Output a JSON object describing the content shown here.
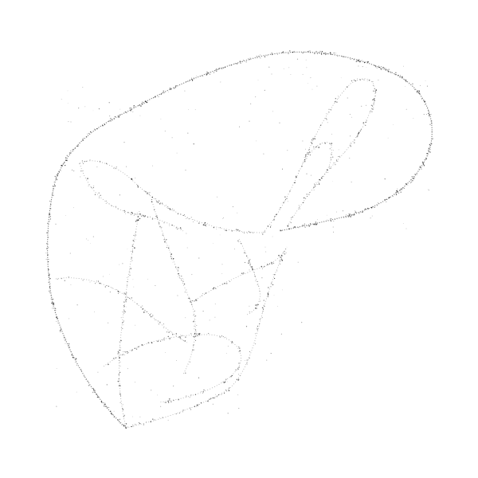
{
  "figure": {
    "background": "#ffffff",
    "ink_color": "#1a1a1a",
    "style": "stippled point-cloud attractor outline"
  }
}
